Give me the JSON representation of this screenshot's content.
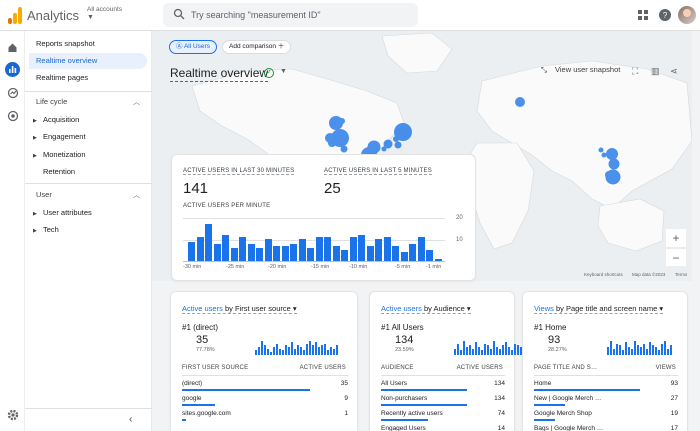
{
  "app": {
    "title": "Analytics",
    "account_label": "All accounts"
  },
  "search": {
    "placeholder": "Try searching \"measurement ID\""
  },
  "colors": {
    "accent": "#1a73e8",
    "logo_orange": "#f9ab00",
    "logo_dark": "#e37400",
    "green_check": "#1e8e3e"
  },
  "sidebar": {
    "items": [
      {
        "label": "Reports snapshot"
      },
      {
        "label": "Realtime overview",
        "active": true
      },
      {
        "label": "Realtime pages"
      }
    ],
    "lifecycle": {
      "label": "Life cycle",
      "items": [
        "Acquisition",
        "Engagement",
        "Monetization",
        "Retention"
      ]
    },
    "user": {
      "label": "User",
      "items": [
        "User attributes",
        "Tech"
      ]
    }
  },
  "map": {
    "chip_all": "All Users",
    "chip_add": "Add comparison",
    "title": "Realtime overview",
    "snapshot": "View user snapshot",
    "footer": {
      "shortcuts": "Keyboard shortcuts",
      "mapdata": "Map data ©2023",
      "terms": "Terms"
    }
  },
  "summary": {
    "label_30": "ACTIVE USERS IN LAST 30 MINUTES",
    "value_30": "141",
    "label_5": "ACTIVE USERS IN LAST 5 MINUTES",
    "value_5": "25",
    "per_minute_label": "ACTIVE USERS PER MINUTE",
    "y_ticks": [
      "20",
      "10"
    ],
    "x_ticks": [
      "-30 min",
      "-25 min",
      "-20 min",
      "-15 min",
      "-10 min",
      "-5 min",
      "-1 min"
    ]
  },
  "chart_data": {
    "type": "bar",
    "title": "ACTIVE USERS PER MINUTE",
    "x_ticks": [
      "-30 min",
      "-25 min",
      "-20 min",
      "-15 min",
      "-10 min",
      "-5 min",
      "-1 min"
    ],
    "ylim": [
      0,
      20
    ],
    "values": [
      9,
      11,
      17,
      8,
      12,
      6,
      11,
      8,
      6,
      10,
      7,
      7,
      8,
      10,
      6,
      11,
      11,
      7,
      5,
      11,
      12,
      7,
      10,
      11,
      7,
      4,
      8,
      11,
      5,
      1
    ]
  },
  "cards": [
    {
      "title_a": "Active users",
      "title_b": " by First user source",
      "top_label": "#1 (direct)",
      "top_value": "35",
      "top_pct": "77.78%",
      "col1": "FIRST USER SOURCE",
      "col2": "ACTIVE USERS",
      "rows": [
        {
          "label": "(direct)",
          "value": "35",
          "frac": 1.0
        },
        {
          "label": "google",
          "value": "9",
          "frac": 0.26
        },
        {
          "label": "sites.google.com",
          "value": "1",
          "frac": 0.03
        }
      ]
    },
    {
      "title_a": "Active users",
      "title_b": " by Audience",
      "top_label": "#1 All Users",
      "top_value": "134",
      "top_pct": "23.59%",
      "col1": "AUDIENCE",
      "col2": "ACTIVE USERS",
      "rows": [
        {
          "label": "All Users",
          "value": "134",
          "frac": 1.0
        },
        {
          "label": "Non-purchasers",
          "value": "134",
          "frac": 1.0
        },
        {
          "label": "Recently active users",
          "value": "74",
          "frac": 0.55
        },
        {
          "label": "Engaged Users",
          "value": "14",
          "frac": 0.1
        }
      ]
    },
    {
      "title_a": "Views",
      "title_b": " by Page title and screen name",
      "top_label": "#1 Home",
      "top_value": "93",
      "top_pct": "28.27%",
      "col1": "PAGE TITLE AND S…",
      "col2": "VIEWS",
      "rows": [
        {
          "label": "Home",
          "value": "93",
          "frac": 1.0
        },
        {
          "label": "New | Google Merch …",
          "value": "27",
          "frac": 0.29
        },
        {
          "label": "Google Merch Shop",
          "value": "19",
          "frac": 0.2
        },
        {
          "label": "Bags | Google Merch …",
          "value": "17",
          "frac": 0.18
        }
      ]
    }
  ]
}
